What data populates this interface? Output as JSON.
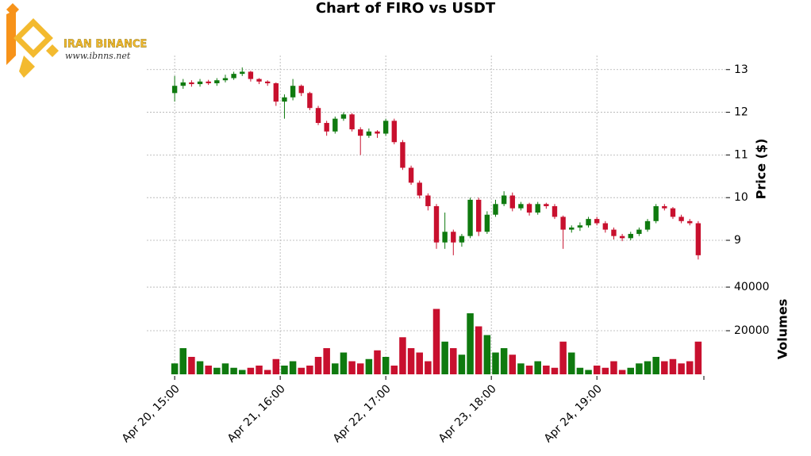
{
  "chart_data": {
    "type": "candlestick",
    "title": "Chart of FIRO vs USDT",
    "y_label": "Price ($)",
    "volume_label": "Volumes",
    "watermark": {
      "name": "IRAN BINANCE",
      "url": "www.ibnns.net"
    },
    "up_color": "#0f7a0f",
    "down_color": "#c8102e",
    "grid": true,
    "xlim": [
      -6.6,
      130.6
    ],
    "xticks": [
      {
        "value": 0,
        "label": "Apr 20, 15:00"
      },
      {
        "value": 25,
        "label": "Apr 21, 16:00"
      },
      {
        "value": 50,
        "label": "Apr 22, 17:00"
      },
      {
        "value": 75,
        "label": "Apr 23, 18:00"
      },
      {
        "value": 100,
        "label": "Apr 24, 19:00"
      }
    ],
    "ylim": [
      8.22,
      13.33
    ],
    "yticks": [
      9,
      10,
      11,
      12,
      13
    ],
    "volume_ylim": [
      0,
      46200
    ],
    "volume_yticks": [
      20000,
      40000
    ],
    "x": [
      0,
      2,
      4,
      6,
      8,
      10,
      12,
      14,
      16,
      18,
      20,
      22,
      24,
      26,
      28,
      30,
      32,
      34,
      36,
      38,
      40,
      42,
      44,
      46,
      48,
      50,
      52,
      54,
      56,
      58,
      60,
      62,
      64,
      66,
      68,
      70,
      72,
      74,
      76,
      78,
      80,
      82,
      84,
      86,
      88,
      90,
      92,
      94,
      96,
      98,
      100,
      102,
      104,
      106,
      108,
      110,
      112,
      114,
      116,
      118,
      120,
      122,
      124
    ],
    "open": [
      12.45,
      12.62,
      12.7,
      12.66,
      12.72,
      12.68,
      12.75,
      12.8,
      12.9,
      12.95,
      12.78,
      12.72,
      12.68,
      12.25,
      12.35,
      12.62,
      12.45,
      12.1,
      11.75,
      11.55,
      11.85,
      11.95,
      11.6,
      11.45,
      11.55,
      11.5,
      11.8,
      11.3,
      10.7,
      10.35,
      10.05,
      9.8,
      8.95,
      9.2,
      8.95,
      9.1,
      9.95,
      9.2,
      9.6,
      9.85,
      10.05,
      9.75,
      9.85,
      9.65,
      9.85,
      9.8,
      9.55,
      9.25,
      9.3,
      9.35,
      9.5,
      9.4,
      9.25,
      9.1,
      9.05,
      9.15,
      9.25,
      9.45,
      9.8,
      9.75,
      9.55,
      9.45,
      9.4
    ],
    "high": [
      12.85,
      12.78,
      12.75,
      12.78,
      12.76,
      12.8,
      12.88,
      12.95,
      13.05,
      12.97,
      12.8,
      12.75,
      12.7,
      12.42,
      12.78,
      12.65,
      12.48,
      12.15,
      11.8,
      11.9,
      12.0,
      11.98,
      11.65,
      11.62,
      11.58,
      11.85,
      11.85,
      11.35,
      10.75,
      10.4,
      10.1,
      9.85,
      9.65,
      9.25,
      9.15,
      10.0,
      10.0,
      9.68,
      9.95,
      10.15,
      10.12,
      9.9,
      9.88,
      9.9,
      9.88,
      9.85,
      9.58,
      9.35,
      9.42,
      9.55,
      9.55,
      9.45,
      9.3,
      9.15,
      9.2,
      9.3,
      9.5,
      9.85,
      9.85,
      9.78,
      9.6,
      9.5,
      9.45
    ],
    "low": [
      12.25,
      12.55,
      12.6,
      12.6,
      12.64,
      12.62,
      12.7,
      12.76,
      12.85,
      12.72,
      12.66,
      12.62,
      12.15,
      11.85,
      12.28,
      12.38,
      12.05,
      11.7,
      11.45,
      11.5,
      11.8,
      11.55,
      11.0,
      11.4,
      11.4,
      11.45,
      11.25,
      10.65,
      10.3,
      9.98,
      9.7,
      8.8,
      8.8,
      8.65,
      8.85,
      9.05,
      9.1,
      9.15,
      9.55,
      9.8,
      9.68,
      9.7,
      9.58,
      9.6,
      9.74,
      9.5,
      8.8,
      9.18,
      9.22,
      9.3,
      9.35,
      9.18,
      9.02,
      8.98,
      9.0,
      9.1,
      9.2,
      9.4,
      9.7,
      9.5,
      9.4,
      9.35,
      8.55
    ],
    "close": [
      12.62,
      12.7,
      12.66,
      12.72,
      12.68,
      12.75,
      12.8,
      12.9,
      12.95,
      12.78,
      12.72,
      12.68,
      12.25,
      12.35,
      12.62,
      12.45,
      12.1,
      11.75,
      11.55,
      11.85,
      11.95,
      11.6,
      11.45,
      11.55,
      11.5,
      11.8,
      11.3,
      10.7,
      10.35,
      10.05,
      9.8,
      8.95,
      9.2,
      8.95,
      9.1,
      9.95,
      9.2,
      9.6,
      9.85,
      10.05,
      9.75,
      9.85,
      9.65,
      9.85,
      9.8,
      9.55,
      9.25,
      9.3,
      9.35,
      9.5,
      9.4,
      9.25,
      9.1,
      9.05,
      9.15,
      9.25,
      9.45,
      9.8,
      9.75,
      9.55,
      9.45,
      9.4,
      8.65
    ],
    "volume": [
      5000,
      12000,
      8000,
      6000,
      4000,
      3000,
      5000,
      3000,
      2000,
      3000,
      4000,
      2000,
      7000,
      4000,
      6000,
      3000,
      4000,
      8000,
      12000,
      5000,
      10000,
      6000,
      5000,
      7000,
      11000,
      8000,
      4000,
      17000,
      12000,
      10000,
      6000,
      30000,
      15000,
      12000,
      9000,
      28000,
      22000,
      18000,
      10000,
      12000,
      9000,
      5000,
      4000,
      6000,
      4000,
      3000,
      15000,
      10000,
      3000,
      2000,
      4000,
      3000,
      6000,
      2000,
      3000,
      5000,
      6000,
      8000,
      6000,
      7000,
      5000,
      6000,
      15000
    ]
  }
}
